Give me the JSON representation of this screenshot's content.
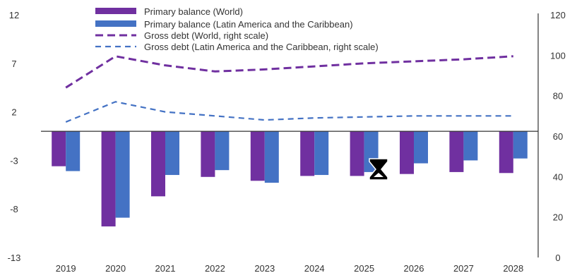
{
  "chart_data": {
    "type": "bar",
    "categories": [
      "2019",
      "2020",
      "2021",
      "2022",
      "2023",
      "2024",
      "2025",
      "2026",
      "2027",
      "2028"
    ],
    "series": [
      {
        "name": "Primary balance (World)",
        "kind": "bar",
        "axis": "left",
        "color": "#7030a0",
        "values": [
          -3.6,
          -9.8,
          -6.7,
          -4.7,
          -5.1,
          -4.6,
          -4.6,
          -4.4,
          -4.2,
          -4.3
        ]
      },
      {
        "name": "Primary balance (Latin America and the Caribbean)",
        "kind": "bar",
        "axis": "left",
        "color": "#4472c4",
        "values": [
          -4.1,
          -8.9,
          -4.5,
          -4.0,
          -5.3,
          -4.5,
          -4.2,
          -3.3,
          -3.0,
          -2.8
        ]
      },
      {
        "name": "Gross debt (World, right scale)",
        "kind": "line",
        "dash": "dashed",
        "axis": "right",
        "color": "#7030a0",
        "values": [
          84,
          99.5,
          95,
          92,
          93,
          94.5,
          96,
          97,
          98,
          99.5
        ]
      },
      {
        "name": "Gross debt (Latin America and the Caribbean, right scale)",
        "kind": "line",
        "dash": "dashed",
        "axis": "right",
        "color": "#4472c4",
        "values": [
          67,
          77,
          72,
          70,
          68,
          69,
          69.5,
          70,
          70,
          70
        ]
      }
    ],
    "left_axis": {
      "ticks": [
        12,
        7,
        2,
        -3,
        -8,
        -13
      ],
      "range": [
        -13,
        12
      ]
    },
    "right_axis": {
      "ticks": [
        120,
        100,
        80,
        60,
        40,
        20,
        0
      ],
      "range": [
        0,
        120
      ]
    },
    "legend_position": "top"
  },
  "cursor_icon": "hourglass-icon"
}
